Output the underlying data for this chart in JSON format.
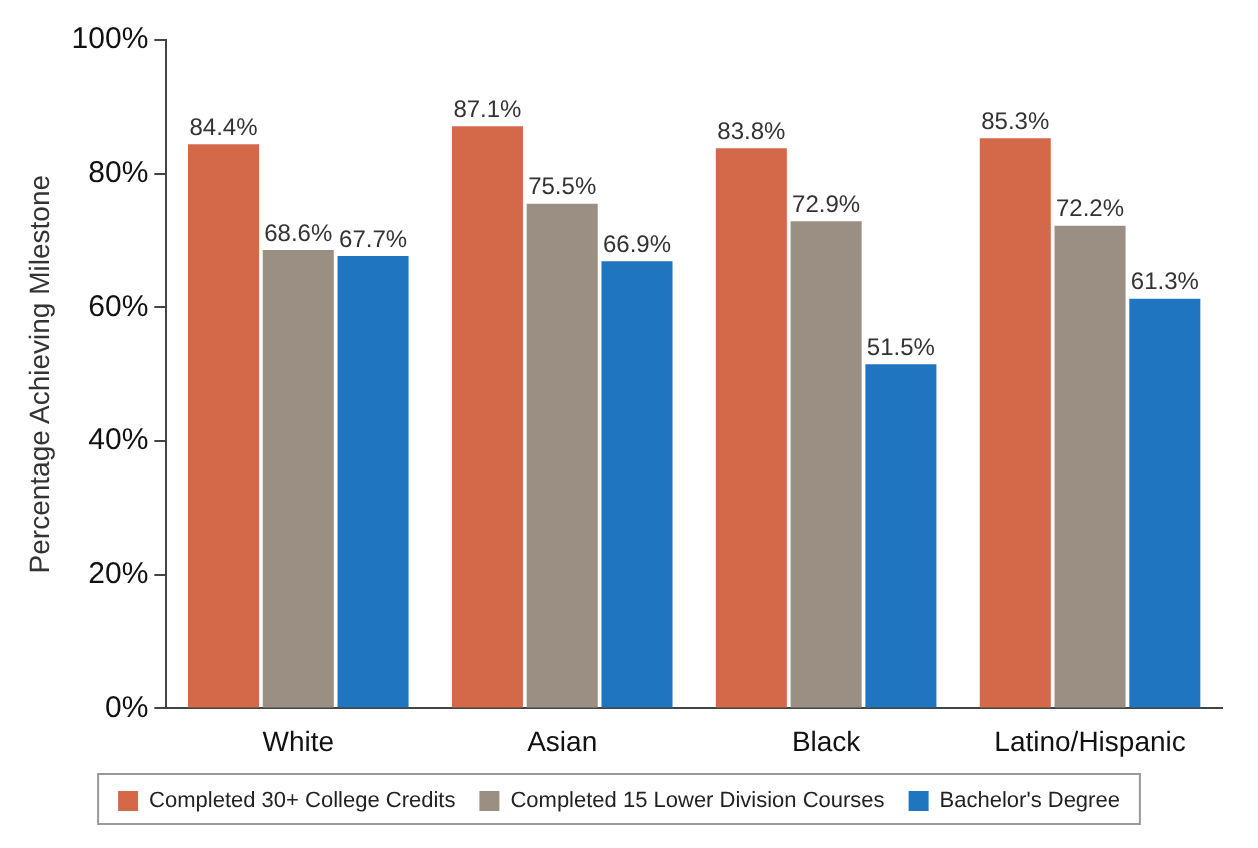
{
  "chart_data": {
    "type": "bar",
    "ylabel": "Percentage Achieving Milestone",
    "categories": [
      "White",
      "Asian",
      "Black",
      "Latino/Hispanic"
    ],
    "series": [
      {
        "name": "Completed 30+ College Credits",
        "color": "#d4694a",
        "values": [
          84.4,
          87.1,
          83.8,
          85.3
        ],
        "value_labels": [
          "84.4%",
          "87.1%",
          "83.8%",
          "85.3%"
        ]
      },
      {
        "name": "Completed 15 Lower Division Courses",
        "color": "#9b8f83",
        "values": [
          68.6,
          75.5,
          72.9,
          72.2
        ],
        "value_labels": [
          "68.6%",
          "75.5%",
          "72.9%",
          "72.2%"
        ]
      },
      {
        "name": "Bachelor's Degree",
        "color": "#1f75c0",
        "values": [
          67.7,
          66.9,
          51.5,
          61.3
        ],
        "value_labels": [
          "67.7%",
          "66.9%",
          "51.5%",
          "61.3%"
        ]
      }
    ],
    "ylim": [
      0,
      100
    ],
    "yticks": [
      {
        "value": 0,
        "label": "0%"
      },
      {
        "value": 20,
        "label": "20%"
      },
      {
        "value": 40,
        "label": "40%"
      },
      {
        "value": 60,
        "label": "60%"
      },
      {
        "value": 80,
        "label": "80%"
      },
      {
        "value": 100,
        "label": "100%"
      }
    ],
    "grid": false,
    "legend": "bottom"
  }
}
